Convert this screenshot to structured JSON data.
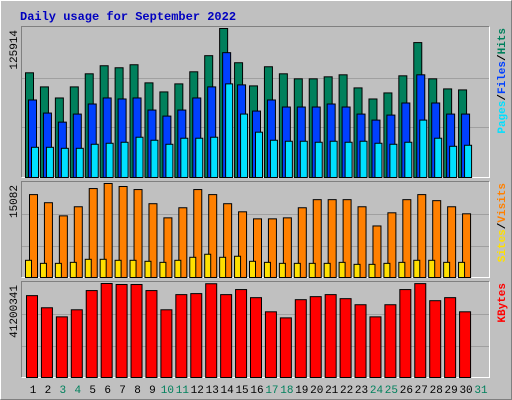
{
  "chart_data": {
    "type": "bar",
    "title": "Daily usage for September 2022",
    "categories": [
      "1",
      "2",
      "3",
      "4",
      "5",
      "6",
      "7",
      "8",
      "9",
      "10",
      "11",
      "12",
      "13",
      "14",
      "15",
      "16",
      "17",
      "18",
      "19",
      "20",
      "21",
      "22",
      "23",
      "24",
      "25",
      "26",
      "27",
      "28",
      "29",
      "30",
      "31"
    ],
    "category_colors": [
      "#000000",
      "#000000",
      "#00805c",
      "#00805c",
      "#000000",
      "#000000",
      "#000000",
      "#000000",
      "#000000",
      "#00805c",
      "#00805c",
      "#000000",
      "#000000",
      "#000000",
      "#000000",
      "#000000",
      "#00805c",
      "#00805c",
      "#000000",
      "#000000",
      "#000000",
      "#000000",
      "#000000",
      "#00805c",
      "#00805c",
      "#000000",
      "#000000",
      "#000000",
      "#000000",
      "#000000",
      "#00805c"
    ],
    "legend_separator": "/",
    "panels": [
      {
        "ylim": [
          0,
          125914
        ],
        "yticks": [
          125914
        ],
        "series": [
          {
            "name": "Hits",
            "color": "#00805c",
            "values": [
              88480,
              76570,
              67210,
              76570,
              87630,
              94440,
              92740,
              95290,
              79980,
              72320,
              79120,
              89330,
              102950,
              125914,
              96990,
              77420,
              93590,
              87630,
              83380,
              83380,
              85080,
              86780,
              75720,
              66360,
              71470,
              85930,
              114010,
              83380,
              74870,
              74020,
              null
            ]
          },
          {
            "name": "Files",
            "color": "#0040ff",
            "values": [
              65510,
              54450,
              46790,
              53600,
              62110,
              67210,
              66360,
              67210,
              57000,
              51900,
              57000,
              67210,
              76570,
              105500,
              78270,
              56150,
              65510,
              59560,
              59560,
              59560,
              62110,
              59560,
              53600,
              48500,
              52750,
              62960,
              86780,
              62960,
              53600,
              53600,
              null
            ]
          },
          {
            "name": "Pages",
            "color": "#00e0ff",
            "values": [
              25520,
              25520,
              24670,
              24670,
              28080,
              28930,
              29780,
              34030,
              31480,
              28080,
              33180,
              33180,
              34030,
              79120,
              53600,
              38290,
              31480,
              30630,
              30630,
              29780,
              30630,
              29780,
              30630,
              28930,
              28080,
              29780,
              48500,
              33180,
              26370,
              27230,
              null
            ]
          }
        ]
      },
      {
        "ylim": [
          0,
          15082
        ],
        "yticks": [
          15082
        ],
        "series": [
          {
            "name": "Visits",
            "color": "#ff8000",
            "values": [
              13300,
              12000,
              9890,
              11350,
              14270,
              15082,
              14600,
              14110,
              11840,
              9570,
              11190,
              14110,
              13300,
              11840,
              10540,
              9410,
              9410,
              9570,
              11190,
              12490,
              12490,
              12490,
              11350,
              8270,
              10380,
              12490,
              13300,
              12330,
              11350,
              10220,
              null
            ]
          },
          {
            "name": "Sites",
            "color": "#ffe000",
            "values": [
              2760,
              2270,
              2270,
              2430,
              2920,
              2920,
              2760,
              2760,
              2600,
              2430,
              2760,
              3240,
              3730,
              3240,
              3410,
              2600,
              2430,
              2270,
              2270,
              2270,
              2270,
              2430,
              2110,
              2110,
              2270,
              2430,
              2760,
              2760,
              2430,
              2430,
              null
            ]
          }
        ]
      },
      {
        "ylim": [
          0,
          41200341
        ],
        "yticks": [
          41200341
        ],
        "series": [
          {
            "name": "KBytes",
            "color": "#ff0000",
            "values": [
              35884000,
              30568000,
              26581000,
              29682000,
              38099000,
              41200341,
              40757000,
              40757000,
              38099000,
              29682000,
              36327000,
              36770000,
              41100000,
              36327000,
              38542000,
              34998000,
              28796000,
              26138000,
              34112000,
              35441000,
              36327000,
              34555000,
              31897000,
              26581000,
              31897000,
              38542000,
              41150000,
              33669000,
              34998000,
              28796000,
              null
            ]
          }
        ]
      }
    ]
  }
}
